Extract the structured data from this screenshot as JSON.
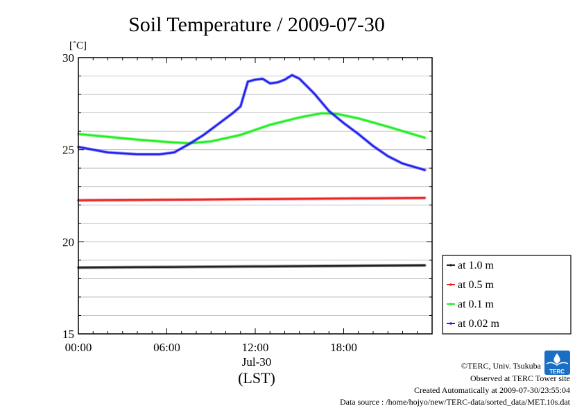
{
  "colors": {
    "background": "#ffffff",
    "grid": "#b0b0b0",
    "frame": "#000000",
    "logo": "#1a6fc4"
  },
  "chart_data": {
    "type": "line",
    "title": "Soil Temperature / 2009-07-30",
    "ylabel": "[˚C]",
    "xlabel": "(LST)",
    "date_label": "Jul-30",
    "xlim": [
      0,
      24
    ],
    "ylim": [
      15,
      30
    ],
    "x_ticks": [
      0,
      6,
      12,
      18
    ],
    "x_tick_labels": [
      "00:00",
      "06:00",
      "12:00",
      "18:00"
    ],
    "y_ticks": [
      15,
      20,
      25,
      30
    ],
    "y_tick_labels": [
      "15",
      "20",
      "25",
      "30"
    ],
    "y_minor_step": 1,
    "grid": true,
    "legend_position": "bottom-right-outside",
    "series": [
      {
        "name": "at 1.0 m",
        "color": "#222222",
        "x": [
          0,
          4,
          8,
          12,
          16,
          20,
          23.5
        ],
        "y": [
          18.6,
          18.62,
          18.64,
          18.66,
          18.68,
          18.7,
          18.72
        ]
      },
      {
        "name": "at 0.5 m",
        "color": "#ee2222",
        "x": [
          0,
          4,
          8,
          12,
          16,
          20,
          23.5
        ],
        "y": [
          22.25,
          22.27,
          22.29,
          22.32,
          22.34,
          22.36,
          22.38
        ]
      },
      {
        "name": "at 0.1 m",
        "color": "#22ee22",
        "x": [
          0,
          2,
          4,
          6,
          7.5,
          9,
          11,
          13,
          15,
          16.5,
          17.5,
          19,
          21,
          23.5
        ],
        "y": [
          25.85,
          25.7,
          25.55,
          25.42,
          25.35,
          25.45,
          25.8,
          26.35,
          26.75,
          26.98,
          26.95,
          26.7,
          26.25,
          25.65
        ]
      },
      {
        "name": "at 0.02 m",
        "color": "#2222ee",
        "x": [
          0,
          2,
          4,
          5.5,
          6.5,
          7.5,
          8.5,
          9.5,
          10.5,
          11,
          11.5,
          12,
          12.5,
          13,
          13.5,
          14,
          14.5,
          15,
          16,
          17,
          18,
          19,
          20,
          21,
          22,
          23.5
        ],
        "y": [
          25.15,
          24.85,
          24.75,
          24.75,
          24.85,
          25.3,
          25.8,
          26.4,
          27.0,
          27.35,
          28.7,
          28.8,
          28.85,
          28.6,
          28.65,
          28.8,
          29.05,
          28.85,
          28.05,
          27.1,
          26.45,
          25.85,
          25.2,
          24.65,
          24.25,
          23.9
        ]
      }
    ]
  },
  "credits": {
    "copyright": "©TERC, Univ. Tsukuba",
    "observed": "Observed at TERC Tower site",
    "created": "Created Automatically at 2009-07-30/23:55:04",
    "source": "Data source : /home/hojyo/new/TERC-data/sorted_data/MET.10s.dat",
    "logo_text": "TERC"
  }
}
